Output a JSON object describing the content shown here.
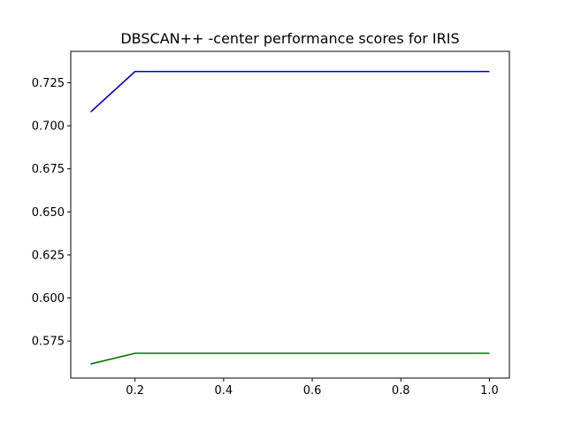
{
  "chart_data": {
    "type": "line",
    "title": "DBSCAN++ -center performance scores for IRIS",
    "xlabel": "",
    "ylabel": "",
    "x": [
      0.1,
      0.2,
      0.3,
      0.4,
      0.5,
      0.6,
      0.7,
      0.8,
      0.9,
      1.0
    ],
    "series": [
      {
        "color": "#0000cc",
        "values": [
          0.708,
          0.7315,
          0.7315,
          0.7315,
          0.7315,
          0.7315,
          0.7315,
          0.7315,
          0.7315,
          0.7315
        ]
      },
      {
        "color": "#007700",
        "values": [
          0.5617,
          0.5679,
          0.5679,
          0.5679,
          0.5679,
          0.5679,
          0.5679,
          0.5679,
          0.5679,
          0.5679
        ]
      }
    ],
    "xlim": [
      0.055,
      1.045
    ],
    "ylim": [
      0.5535,
      0.7432
    ],
    "xticks": [
      0.2,
      0.4,
      0.6,
      0.8,
      1.0
    ],
    "xtick_labels": [
      "0.2",
      "0.4",
      "0.6",
      "0.8",
      "1.0"
    ],
    "yticks": [
      0.575,
      0.6,
      0.625,
      0.65,
      0.675,
      0.7,
      0.725
    ],
    "ytick_labels": [
      "0.575",
      "0.600",
      "0.625",
      "0.650",
      "0.675",
      "0.700",
      "0.725"
    ],
    "grid": false,
    "legend": false
  }
}
